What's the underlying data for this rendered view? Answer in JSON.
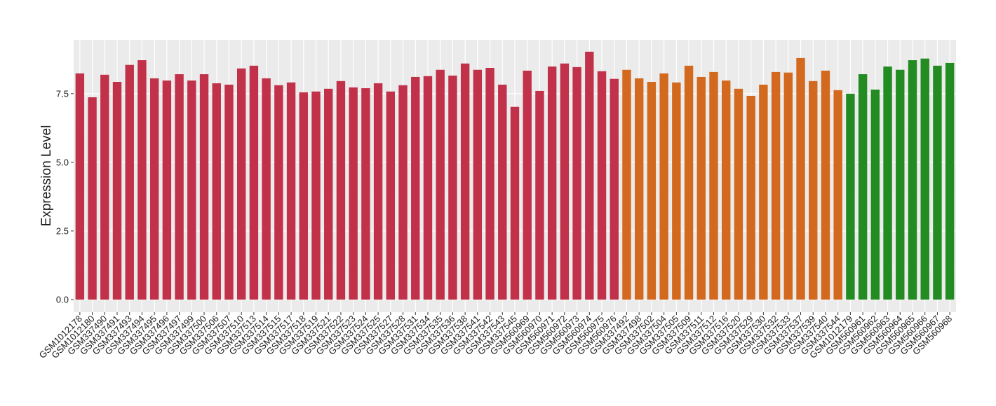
{
  "chart_data": {
    "type": "bar",
    "y_label": "Expression Level",
    "categories": [
      "GSM1012178",
      "GSM1012180",
      "GSM337490",
      "GSM337491",
      "GSM337493",
      "GSM337494",
      "GSM337495",
      "GSM337496",
      "GSM337497",
      "GSM337499",
      "GSM337500",
      "GSM337506",
      "GSM337507",
      "GSM337510",
      "GSM337513",
      "GSM337514",
      "GSM337515",
      "GSM337517",
      "GSM337518",
      "GSM337519",
      "GSM337521",
      "GSM337522",
      "GSM337523",
      "GSM337524",
      "GSM337525",
      "GSM337527",
      "GSM337528",
      "GSM337531",
      "GSM337534",
      "GSM337535",
      "GSM337536",
      "GSM337538",
      "GSM337541",
      "GSM337542",
      "GSM337543",
      "GSM337545",
      "GSM560969",
      "GSM560970",
      "GSM560971",
      "GSM560972",
      "GSM560973",
      "GSM560974",
      "GSM560975",
      "GSM560976",
      "GSM337492",
      "GSM337498",
      "GSM337502",
      "GSM337504",
      "GSM337505",
      "GSM337509",
      "GSM337511",
      "GSM337512",
      "GSM337516",
      "GSM337520",
      "GSM337529",
      "GSM337530",
      "GSM337532",
      "GSM337533",
      "GSM337537",
      "GSM337539",
      "GSM337540",
      "GSM337544",
      "GSM1012179",
      "GSM560961",
      "GSM560962",
      "GSM560963",
      "GSM560964",
      "GSM560965",
      "GSM560966",
      "GSM560967",
      "GSM560968"
    ],
    "values": [
      8.24,
      7.37,
      8.19,
      7.93,
      8.55,
      8.72,
      8.06,
      7.98,
      8.21,
      7.98,
      8.21,
      7.88,
      7.83,
      8.42,
      8.52,
      8.06,
      7.81,
      7.91,
      7.55,
      7.58,
      7.68,
      7.96,
      7.73,
      7.7,
      7.88,
      7.58,
      7.81,
      8.11,
      8.14,
      8.37,
      8.16,
      8.6,
      8.37,
      8.44,
      7.83,
      7.02,
      8.34,
      7.6,
      8.49,
      8.6,
      8.47,
      9.03,
      8.32,
      8.04,
      8.37,
      8.06,
      7.93,
      8.24,
      7.91,
      8.52,
      8.11,
      8.29,
      7.98,
      7.68,
      7.42,
      7.83,
      8.29,
      8.27,
      8.8,
      7.96,
      8.34,
      7.63,
      7.5,
      8.21,
      7.65,
      8.49,
      8.37,
      8.72,
      8.78,
      8.52,
      8.62
    ],
    "colors": [
      "#c1314a",
      "#c1314a",
      "#c1314a",
      "#c1314a",
      "#c1314a",
      "#c1314a",
      "#c1314a",
      "#c1314a",
      "#c1314a",
      "#c1314a",
      "#c1314a",
      "#c1314a",
      "#c1314a",
      "#c1314a",
      "#c1314a",
      "#c1314a",
      "#c1314a",
      "#c1314a",
      "#c1314a",
      "#c1314a",
      "#c1314a",
      "#c1314a",
      "#c1314a",
      "#c1314a",
      "#c1314a",
      "#c1314a",
      "#c1314a",
      "#c1314a",
      "#c1314a",
      "#c1314a",
      "#c1314a",
      "#c1314a",
      "#c1314a",
      "#c1314a",
      "#c1314a",
      "#c1314a",
      "#c1314a",
      "#c1314a",
      "#c1314a",
      "#c1314a",
      "#c1314a",
      "#c1314a",
      "#c1314a",
      "#c1314a",
      "#d2691e",
      "#d2691e",
      "#d2691e",
      "#d2691e",
      "#d2691e",
      "#d2691e",
      "#d2691e",
      "#d2691e",
      "#d2691e",
      "#d2691e",
      "#d2691e",
      "#d2691e",
      "#d2691e",
      "#d2691e",
      "#d2691e",
      "#d2691e",
      "#d2691e",
      "#d2691e",
      "#228b22",
      "#228b22",
      "#228b22",
      "#228b22",
      "#228b22",
      "#228b22",
      "#228b22",
      "#228b22",
      "#228b22"
    ],
    "ylim": [
      -0.46,
      9.46
    ],
    "yticks": [
      {
        "value": 0,
        "label": "0.0"
      },
      2.5,
      {
        "value": 5,
        "label": "5.0"
      },
      7.5
    ],
    "grid": true
  }
}
